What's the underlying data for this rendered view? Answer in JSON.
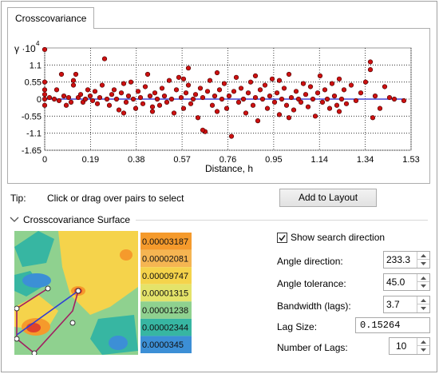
{
  "tab": {
    "label": "Crosscovariance"
  },
  "chart_data": {
    "type": "scatter",
    "title": "",
    "ylabel": "γ ·10",
    "ylabel_exponent": "4",
    "xlabel": "Distance, h",
    "x_ticks": [
      "0",
      "0.19",
      "0.38",
      "0.57",
      "0.76",
      "0.95",
      "1.14",
      "1.34",
      "1.53"
    ],
    "y_ticks": [
      "1.1",
      "0.55",
      "0",
      "-0.55",
      "-1.1",
      "-1.65"
    ],
    "xlim": [
      0,
      1.53
    ],
    "ylim": [
      -1.65,
      1.65
    ],
    "grid": true,
    "point_color": "#cc1010",
    "trend_line_color": "#2222cc",
    "points": [
      [
        0.0,
        1.6
      ],
      [
        0.0,
        0.55
      ],
      [
        0.0,
        0.3
      ],
      [
        0.0,
        0.0
      ],
      [
        0.0,
        -0.2
      ],
      [
        0.0,
        0.15
      ],
      [
        0.02,
        0.05
      ],
      [
        0.04,
        0.0
      ],
      [
        0.06,
        -0.05
      ],
      [
        0.07,
        0.8
      ],
      [
        0.08,
        0.1
      ],
      [
        0.1,
        0.05
      ],
      [
        0.11,
        -0.1
      ],
      [
        0.12,
        0.6
      ],
      [
        0.13,
        0.8
      ],
      [
        0.14,
        0.05
      ],
      [
        0.15,
        0.15
      ],
      [
        0.16,
        -0.1
      ],
      [
        0.17,
        0.0
      ],
      [
        0.18,
        0.3
      ],
      [
        0.19,
        0.1
      ],
      [
        0.2,
        -0.05
      ],
      [
        0.21,
        0.25
      ],
      [
        0.22,
        -0.15
      ],
      [
        0.23,
        0.05
      ],
      [
        0.24,
        0.45
      ],
      [
        0.25,
        1.3
      ],
      [
        0.26,
        0.0
      ],
      [
        0.27,
        -0.2
      ],
      [
        0.28,
        0.15
      ],
      [
        0.29,
        0.3
      ],
      [
        0.3,
        0.0
      ],
      [
        0.31,
        -0.35
      ],
      [
        0.32,
        0.2
      ],
      [
        0.33,
        0.5
      ],
      [
        0.34,
        -0.1
      ],
      [
        0.35,
        0.1
      ],
      [
        0.36,
        0.55
      ],
      [
        0.37,
        0.0
      ],
      [
        0.38,
        -0.3
      ],
      [
        0.39,
        0.25
      ],
      [
        0.4,
        0.05
      ],
      [
        0.41,
        -0.15
      ],
      [
        0.42,
        0.4
      ],
      [
        0.43,
        0.8
      ],
      [
        0.44,
        0.1
      ],
      [
        0.45,
        -0.4
      ],
      [
        0.46,
        0.2
      ],
      [
        0.47,
        0.0
      ],
      [
        0.48,
        -0.2
      ],
      [
        0.49,
        0.35
      ],
      [
        0.5,
        0.1
      ],
      [
        0.51,
        -0.1
      ],
      [
        0.52,
        0.6
      ],
      [
        0.53,
        0.0
      ],
      [
        0.54,
        -0.45
      ],
      [
        0.55,
        0.3
      ],
      [
        0.56,
        0.7
      ],
      [
        0.57,
        0.05
      ],
      [
        0.58,
        -0.3
      ],
      [
        0.59,
        0.2
      ],
      [
        0.6,
        0.45
      ],
      [
        0.61,
        -0.15
      ],
      [
        0.62,
        0.0
      ],
      [
        0.63,
        0.15
      ],
      [
        0.64,
        -0.6
      ],
      [
        0.65,
        0.35
      ],
      [
        0.66,
        0.05
      ],
      [
        0.67,
        -1.05
      ],
      [
        0.68,
        0.25
      ],
      [
        0.69,
        0.6
      ],
      [
        0.7,
        -0.2
      ],
      [
        0.71,
        0.1
      ],
      [
        0.72,
        -0.4
      ],
      [
        0.73,
        0.3
      ],
      [
        0.74,
        0.0
      ],
      [
        0.75,
        0.5
      ],
      [
        0.76,
        -0.3
      ],
      [
        0.77,
        0.1
      ],
      [
        0.78,
        -1.2
      ],
      [
        0.79,
        0.25
      ],
      [
        0.8,
        0.7
      ],
      [
        0.81,
        -0.1
      ],
      [
        0.82,
        0.35
      ],
      [
        0.83,
        0.0
      ],
      [
        0.84,
        -0.45
      ],
      [
        0.85,
        0.2
      ],
      [
        0.86,
        0.55
      ],
      [
        0.87,
        -0.2
      ],
      [
        0.88,
        0.05
      ],
      [
        0.89,
        -0.7
      ],
      [
        0.9,
        0.3
      ],
      [
        0.91,
        0.0
      ],
      [
        0.92,
        0.45
      ],
      [
        0.93,
        -0.3
      ],
      [
        0.94,
        0.1
      ],
      [
        0.95,
        0.65
      ],
      [
        0.96,
        -0.1
      ],
      [
        0.97,
        0.2
      ],
      [
        0.98,
        -0.5
      ],
      [
        0.99,
        0.0
      ],
      [
        1.0,
        0.35
      ],
      [
        1.01,
        -0.2
      ],
      [
        1.02,
        0.8
      ],
      [
        1.03,
        0.05
      ],
      [
        1.04,
        -0.35
      ],
      [
        1.05,
        0.25
      ],
      [
        1.06,
        0.0
      ],
      [
        1.07,
        -0.1
      ],
      [
        1.08,
        0.5
      ],
      [
        1.09,
        0.15
      ],
      [
        1.1,
        -0.25
      ],
      [
        1.11,
        0.4
      ],
      [
        1.12,
        0.0
      ],
      [
        1.13,
        -0.55
      ],
      [
        1.14,
        0.2
      ],
      [
        1.15,
        0.75
      ],
      [
        1.16,
        -0.1
      ],
      [
        1.17,
        0.3
      ],
      [
        1.18,
        0.0
      ],
      [
        1.19,
        -0.3
      ],
      [
        1.2,
        0.5
      ],
      [
        1.21,
        0.1
      ],
      [
        1.22,
        -0.2
      ],
      [
        1.23,
        0.65
      ],
      [
        1.24,
        0.0
      ],
      [
        1.25,
        0.3
      ],
      [
        1.26,
        -0.15
      ],
      [
        1.28,
        0.45
      ],
      [
        1.3,
        -0.05
      ],
      [
        1.32,
        0.2
      ],
      [
        1.34,
        0.55
      ],
      [
        1.36,
        0.95
      ],
      [
        1.37,
        -0.6
      ],
      [
        1.38,
        0.1
      ],
      [
        1.4,
        -0.3
      ],
      [
        1.42,
        0.4
      ],
      [
        1.44,
        0.05
      ],
      [
        1.46,
        0.0
      ],
      [
        1.5,
        -0.05
      ],
      [
        0.6,
        1.0
      ],
      [
        0.58,
        0.65
      ],
      [
        0.72,
        0.85
      ],
      [
        0.45,
        -0.25
      ],
      [
        0.66,
        -1.0
      ],
      [
        0.33,
        -0.45
      ],
      [
        0.88,
        0.75
      ],
      [
        1.02,
        -0.6
      ],
      [
        1.23,
        -0.4
      ],
      [
        1.36,
        1.2
      ],
      [
        0.12,
        0.45
      ],
      [
        0.05,
        0.3
      ],
      [
        0.09,
        -0.2
      ],
      [
        0.98,
        0.6
      ]
    ],
    "trend_line": [
      [
        0.0,
        0.0
      ],
      [
        1.5,
        0.0
      ]
    ]
  },
  "tip": {
    "label": "Tip:",
    "text": "Click or drag over pairs to select"
  },
  "add_to_layout_label": "Add to Layout",
  "surface_section": {
    "label": "Crosscovariance Surface"
  },
  "surface_legend": [
    "0.00003187",
    "0.00002081",
    "0.00009747",
    "0.00001315",
    "0.00001238",
    "0.00002344",
    "0.0000345"
  ],
  "surface_colors": {
    "yellow": "#f5d34b",
    "light_green": "#8fd18f",
    "teal": "#37b6a2",
    "blue": "#3c8fd6",
    "orange": "#f59a2c",
    "red": "#e0422a",
    "purple_line": "#a11f62",
    "blue_line": "#2f3fd4"
  },
  "params": {
    "show_search_label": "Show search direction",
    "show_search_checked": true,
    "angle_direction_label": "Angle direction:",
    "angle_direction_value": "233.3",
    "angle_tolerance_label": "Angle tolerance:",
    "angle_tolerance_value": "45.0",
    "bandwidth_label": "Bandwidth (lags):",
    "bandwidth_value": "3.7",
    "lag_size_label": "Lag Size:",
    "lag_size_value": "0.15264",
    "num_lags_label": "Number of Lags:",
    "num_lags_value": "10"
  }
}
